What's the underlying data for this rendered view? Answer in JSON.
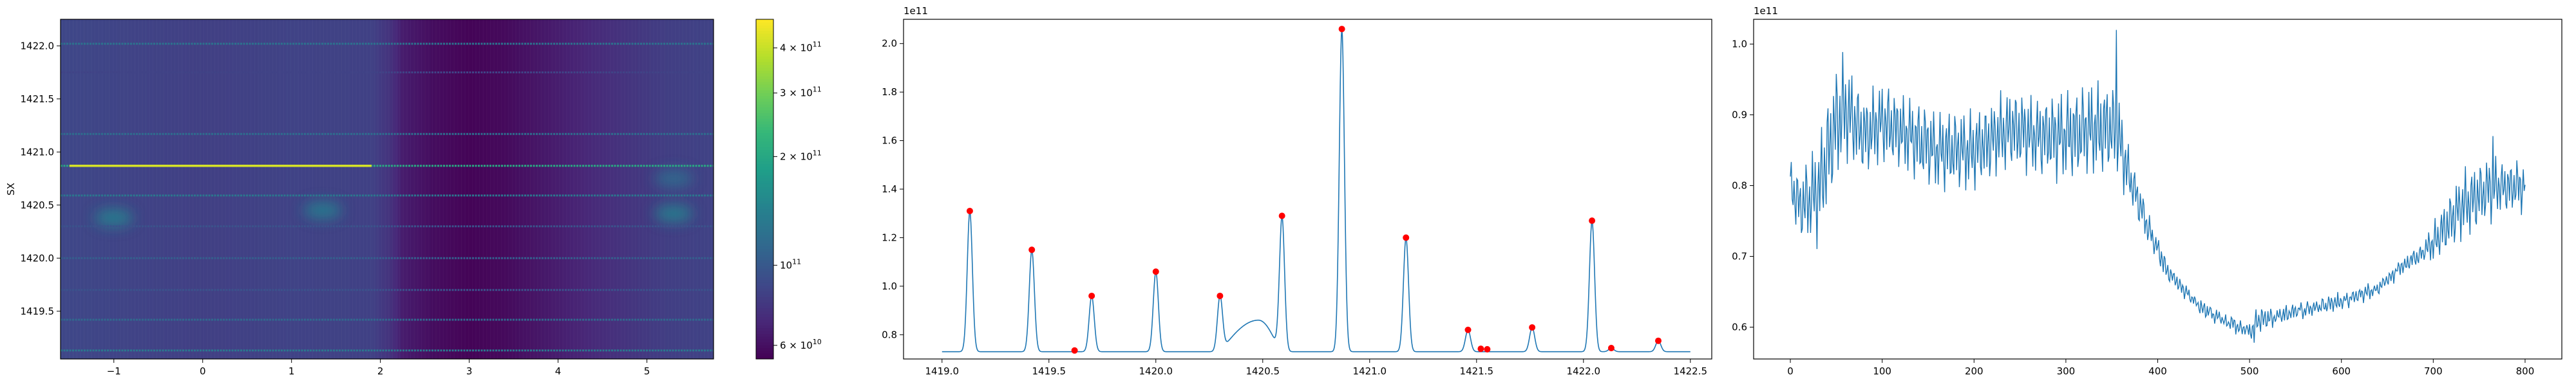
{
  "colors": {
    "line": "#1f77b4",
    "peaks": "#ff0000",
    "axes": "#000000",
    "viridis": [
      "#440154",
      "#482878",
      "#3e4989",
      "#31688e",
      "#26828e",
      "#1f9e89",
      "#35b779",
      "#6ece58",
      "#b5de2b",
      "#fde725"
    ]
  },
  "chart_data": [
    {
      "type": "heatmap",
      "ylabel": "SX",
      "xlabel": "",
      "title": "",
      "xlim": [
        -1.6,
        5.75
      ],
      "ylim": [
        1419.05,
        1422.25
      ],
      "x_ticks": [
        -1,
        0,
        1,
        2,
        3,
        4,
        5
      ],
      "x_tick_labels": [
        "−1",
        "0",
        "1",
        "2",
        "3",
        "4",
        "5"
      ],
      "y_ticks": [
        1419.5,
        1420.0,
        1420.5,
        1421.0,
        1421.5,
        1422.0
      ],
      "y_tick_labels": [
        "1419.5",
        "1420.0",
        "1420.5",
        "1421.0",
        "1421.5",
        "1422.0"
      ],
      "colorbar": {
        "scale": "log",
        "range": [
          55000000000.0,
          480000000000.0
        ],
        "ticks": [
          60000000000.0,
          100000000000.0,
          200000000000.0,
          300000000000.0,
          400000000000.0
        ],
        "labels": [
          {
            "base": "6 × 10",
            "exp": "10"
          },
          {
            "base": "10",
            "exp": "11"
          },
          {
            "base": "2 × 10",
            "exp": "11"
          },
          {
            "base": "3 × 10",
            "exp": "11"
          },
          {
            "base": "4 × 10",
            "exp": "11"
          }
        ]
      },
      "background_profile": {
        "x": [
          -1.6,
          -1.0,
          0.0,
          1.0,
          1.9,
          2.1,
          2.25,
          2.6,
          3.0,
          3.4,
          3.9,
          4.6,
          5.2,
          5.75
        ],
        "value": [
          88000000000.0,
          86000000000.0,
          83000000000.0,
          85000000000.0,
          84000000000.0,
          76000000000.0,
          65000000000.0,
          59000000000.0,
          56000000000.0,
          58000000000.0,
          64000000000.0,
          74000000000.0,
          82000000000.0,
          85000000000.0
        ]
      },
      "horizontal_lines": [
        {
          "y": 1422.02,
          "value": 125000000000.0
        },
        {
          "y": 1421.75,
          "value": 85000000000.0
        },
        {
          "y": 1421.17,
          "value": 120000000000.0
        },
        {
          "y": 1420.87,
          "value": 205000000000.0
        },
        {
          "y": 1420.59,
          "value": 130000000000.0
        },
        {
          "y": 1420.3,
          "value": 96000000000.0
        },
        {
          "y": 1420.0,
          "value": 106000000000.0
        },
        {
          "y": 1419.7,
          "value": 96000000000.0
        },
        {
          "y": 1419.42,
          "value": 115000000000.0
        },
        {
          "y": 1419.13,
          "value": 131000000000.0
        }
      ],
      "bright_band": {
        "y": 1420.87,
        "x_range": [
          -1.5,
          1.9
        ],
        "value": 420000000000.0
      },
      "blobs": [
        {
          "x": -1.0,
          "y": 1420.38,
          "value": 145000000000.0
        },
        {
          "x": 1.35,
          "y": 1420.45,
          "value": 140000000000.0
        },
        {
          "x": 5.3,
          "y": 1420.42,
          "value": 145000000000.0
        },
        {
          "x": 5.3,
          "y": 1420.75,
          "value": 120000000000.0
        }
      ]
    },
    {
      "type": "line",
      "title": "",
      "xlabel": "",
      "ylabel": "",
      "y_offset_label": "1e11",
      "xlim": [
        1418.82,
        1422.6
      ],
      "ylim": [
        0.7,
        2.1
      ],
      "x_ticks": [
        1419.0,
        1419.5,
        1420.0,
        1420.5,
        1421.0,
        1421.5,
        1422.0,
        1422.5
      ],
      "x_tick_labels": [
        "1419.0",
        "1419.5",
        "1420.0",
        "1420.5",
        "1421.0",
        "1421.5",
        "1422.0",
        "1422.5"
      ],
      "y_ticks": [
        0.8,
        1.0,
        1.2,
        1.4,
        1.6,
        1.8,
        2.0
      ],
      "y_tick_labels": [
        "0.8",
        "1.0",
        "1.2",
        "1.4",
        "1.6",
        "1.8",
        "2.0"
      ],
      "baseline": {
        "x": [
          1419.0,
          1422.5
        ],
        "value": 0.73
      },
      "bump": {
        "x": [
          1420.3,
          1420.58
        ],
        "x_peak": 1420.48,
        "value": 0.86
      },
      "peaks": [
        {
          "x": 1419.13,
          "y": 1.31
        },
        {
          "x": 1419.42,
          "y": 1.15
        },
        {
          "x": 1419.62,
          "y": 0.735
        },
        {
          "x": 1419.7,
          "y": 0.96
        },
        {
          "x": 1420.0,
          "y": 1.06
        },
        {
          "x": 1420.3,
          "y": 0.96
        },
        {
          "x": 1420.59,
          "y": 1.29
        },
        {
          "x": 1420.87,
          "y": 2.06
        },
        {
          "x": 1421.17,
          "y": 1.2
        },
        {
          "x": 1421.46,
          "y": 0.82
        },
        {
          "x": 1421.52,
          "y": 0.742
        },
        {
          "x": 1421.55,
          "y": 0.74
        },
        {
          "x": 1421.76,
          "y": 0.83
        },
        {
          "x": 1422.04,
          "y": 1.27
        },
        {
          "x": 1422.13,
          "y": 0.745
        },
        {
          "x": 1422.35,
          "y": 0.775
        }
      ],
      "peak_marker_x": [
        1419.13,
        1419.42,
        1419.62,
        1419.7,
        1420.0,
        1420.3,
        1420.59,
        1420.87,
        1421.17,
        1421.46,
        1421.52,
        1421.55,
        1421.76,
        1422.04,
        1422.13,
        1422.35
      ],
      "peak_marker_y": [
        1.31,
        1.15,
        0.735,
        0.96,
        1.06,
        0.96,
        1.29,
        2.06,
        1.2,
        0.82,
        0.742,
        0.74,
        0.83,
        1.27,
        0.745,
        0.775
      ]
    },
    {
      "type": "line",
      "title": "",
      "xlabel": "",
      "ylabel": "",
      "y_offset_label": "1e11",
      "xlim": [
        -40,
        840
      ],
      "ylim": [
        0.555,
        1.035
      ],
      "x_ticks": [
        0,
        100,
        200,
        300,
        400,
        500,
        600,
        700,
        800
      ],
      "x_tick_labels": [
        "0",
        "100",
        "200",
        "300",
        "400",
        "500",
        "600",
        "700",
        "800"
      ],
      "y_ticks": [
        0.6,
        0.7,
        0.8,
        0.9,
        1.0
      ],
      "y_tick_labels": [
        "0.6",
        "0.7",
        "0.8",
        "0.9",
        "1.0"
      ],
      "n_points": 801,
      "envelope": {
        "x": [
          0,
          10,
          30,
          50,
          60,
          80,
          100,
          130,
          160,
          200,
          240,
          270,
          300,
          330,
          355,
          370,
          390,
          410,
          440,
          470,
          500,
          510,
          530,
          560,
          600,
          640,
          670,
          690,
          700,
          730,
          760,
          780,
          800
        ],
        "mean": [
          0.8,
          0.77,
          0.79,
          0.89,
          0.91,
          0.87,
          0.89,
          0.87,
          0.85,
          0.85,
          0.88,
          0.87,
          0.87,
          0.88,
          0.88,
          0.81,
          0.74,
          0.68,
          0.635,
          0.61,
          0.595,
          0.61,
          0.615,
          0.625,
          0.635,
          0.655,
          0.69,
          0.705,
          0.72,
          0.77,
          0.795,
          0.8,
          0.8
        ],
        "amplitude": [
          0.04,
          0.05,
          0.08,
          0.09,
          0.08,
          0.06,
          0.06,
          0.06,
          0.06,
          0.06,
          0.06,
          0.06,
          0.07,
          0.07,
          0.07,
          0.04,
          0.025,
          0.015,
          0.01,
          0.01,
          0.012,
          0.02,
          0.012,
          0.012,
          0.012,
          0.01,
          0.012,
          0.015,
          0.03,
          0.05,
          0.05,
          0.04,
          0.04
        ]
      },
      "extremes": [
        {
          "x": 355,
          "y": 1.02
        },
        {
          "x": 505,
          "y": 0.578
        },
        {
          "x": 765,
          "y": 0.87
        }
      ]
    }
  ]
}
